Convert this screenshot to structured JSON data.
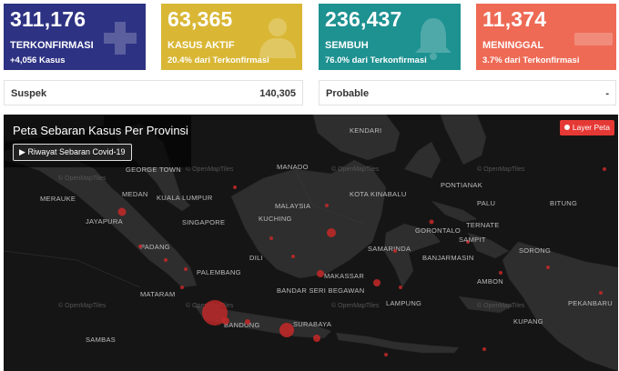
{
  "cards": [
    {
      "number": "311,176",
      "label": "TERKONFIRMASI",
      "sub": "+4,056 Kasus",
      "color": "#2d3283",
      "icon": "plus-icon"
    },
    {
      "number": "63,365",
      "label": "KASUS AKTIF",
      "sub": "20.4% dari Terkonfirmasi",
      "color": "#d9b735",
      "icon": "patient-icon"
    },
    {
      "number": "236,437",
      "label": "SEMBUH",
      "sub": "76.0% dari Terkonfirmasi",
      "color": "#1e9191",
      "icon": "bell-icon"
    },
    {
      "number": "11,374",
      "label": "MENINGGAL",
      "sub": "3.7% dari Terkonfirmasi",
      "color": "#ee6a55",
      "icon": "minus-icon"
    }
  ],
  "stats": [
    {
      "label": "Suspek",
      "value": "140,305"
    },
    {
      "label": "Probable",
      "value": "-"
    }
  ],
  "map": {
    "title": "Peta Sebaran Kasus Per Provinsi",
    "history_button": "Riwayat Sebaran Covid-19",
    "layer_button": "Layer Peta",
    "watermark": "© OpenMapTiles",
    "cities": [
      "GEORGE TOWN",
      "MEDAN",
      "KUALA LUMPUR",
      "SINGAPORE",
      "PADANG",
      "PALEMBANG",
      "BANDUNG",
      "SURABAYA",
      "KUCHING",
      "MALAYSIA",
      "KOTA KINABALU",
      "SAMARINDA",
      "MAKASSAR",
      "GORONTALO",
      "AMBON",
      "TERNATE",
      "SORONG",
      "BANDAR SERI BEGAWAN",
      "PONTIANAK",
      "MATARAM",
      "KUPANG",
      "DILI",
      "JAYAPURA",
      "MERAUKE",
      "LAMPUNG",
      "PEKANBARU",
      "BANJARMASIN",
      "MANADO",
      "KENDARI",
      "PALU",
      "BITUNG",
      "SAMBAS",
      "SAMPIT"
    ]
  }
}
